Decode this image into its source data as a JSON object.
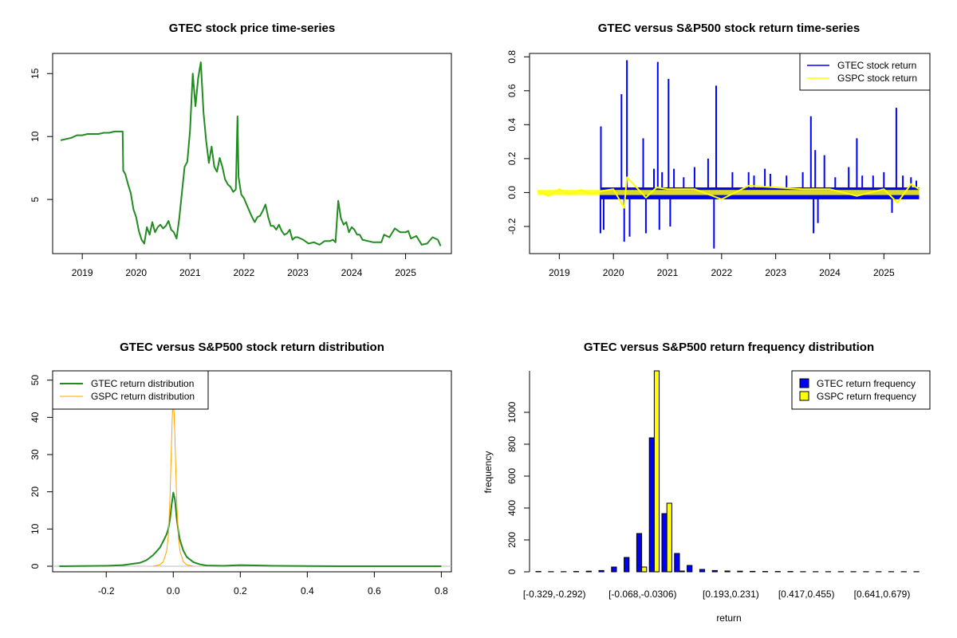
{
  "chart_data": [
    {
      "type": "line",
      "title": "GTEC stock price time-series",
      "xlabel": "",
      "ylabel": "",
      "xlim": [
        2018.45,
        2025.85
      ],
      "ylim": [
        0.7,
        16.6
      ],
      "x_ticks": [
        "2019",
        "2020",
        "2021",
        "2022",
        "2023",
        "2024",
        "2025"
      ],
      "y_ticks": [
        "5",
        "10",
        "15"
      ],
      "color": "#228b22",
      "series": [
        {
          "name": "GTEC price",
          "x": [
            2018.6,
            2018.7,
            2018.8,
            2018.9,
            2019.0,
            2019.1,
            2019.2,
            2019.3,
            2019.4,
            2019.5,
            2019.6,
            2019.7,
            2019.75,
            2019.76,
            2019.8,
            2019.85,
            2019.9,
            2019.95,
            2020.0,
            2020.05,
            2020.1,
            2020.15,
            2020.2,
            2020.25,
            2020.3,
            2020.35,
            2020.4,
            2020.45,
            2020.5,
            2020.55,
            2020.6,
            2020.65,
            2020.7,
            2020.75,
            2020.8,
            2020.85,
            2020.9,
            2020.95,
            2021.0,
            2021.05,
            2021.1,
            2021.15,
            2021.2,
            2021.25,
            2021.3,
            2021.35,
            2021.4,
            2021.45,
            2021.5,
            2021.55,
            2021.6,
            2021.65,
            2021.7,
            2021.75,
            2021.8,
            2021.85,
            2021.88,
            2021.9,
            2021.95,
            2022.0,
            2022.05,
            2022.1,
            2022.15,
            2022.2,
            2022.25,
            2022.3,
            2022.35,
            2022.4,
            2022.45,
            2022.5,
            2022.55,
            2022.6,
            2022.65,
            2022.7,
            2022.75,
            2022.8,
            2022.85,
            2022.9,
            2022.95,
            2023.0,
            2023.1,
            2023.2,
            2023.3,
            2023.4,
            2023.5,
            2023.6,
            2023.65,
            2023.7,
            2023.75,
            2023.8,
            2023.85,
            2023.9,
            2023.95,
            2024.0,
            2024.05,
            2024.1,
            2024.15,
            2024.2,
            2024.3,
            2024.4,
            2024.5,
            2024.55,
            2024.6,
            2024.7,
            2024.8,
            2024.9,
            2025.0,
            2025.05,
            2025.1,
            2025.2,
            2025.3,
            2025.4,
            2025.5,
            2025.6,
            2025.65
          ],
          "y": [
            9.7,
            9.8,
            9.9,
            10.1,
            10.1,
            10.2,
            10.2,
            10.2,
            10.3,
            10.3,
            10.4,
            10.4,
            10.4,
            7.3,
            7.0,
            6.2,
            5.5,
            4.2,
            3.6,
            2.5,
            1.8,
            1.5,
            2.8,
            2.2,
            3.2,
            2.4,
            2.8,
            3.0,
            2.7,
            2.9,
            3.3,
            2.6,
            2.4,
            1.9,
            3.5,
            5.6,
            7.6,
            8.0,
            10.5,
            15.0,
            12.4,
            14.6,
            15.9,
            11.9,
            9.6,
            7.9,
            9.2,
            7.6,
            7.2,
            8.3,
            7.6,
            6.6,
            6.2,
            6.0,
            5.6,
            5.8,
            11.6,
            6.8,
            5.4,
            5.1,
            4.6,
            4.1,
            3.6,
            3.2,
            3.6,
            3.7,
            4.1,
            4.6,
            3.6,
            2.9,
            2.9,
            2.6,
            3.0,
            2.5,
            2.2,
            2.3,
            2.6,
            1.8,
            2.0,
            2.0,
            1.8,
            1.5,
            1.6,
            1.4,
            1.7,
            1.7,
            1.8,
            1.6,
            4.9,
            3.5,
            3.0,
            3.2,
            2.4,
            2.8,
            2.6,
            2.2,
            2.2,
            1.8,
            1.7,
            1.6,
            1.6,
            1.6,
            2.2,
            2.0,
            2.7,
            2.4,
            2.4,
            2.5,
            1.9,
            2.1,
            1.4,
            1.5,
            2.0,
            1.8,
            1.3
          ]
        }
      ]
    },
    {
      "type": "line",
      "title": "GTEC versus S&P500 stock return time-series",
      "xlabel": "",
      "ylabel": "",
      "xlim": [
        2018.45,
        2025.85
      ],
      "ylim": [
        -0.36,
        0.82
      ],
      "x_ticks": [
        "2019",
        "2020",
        "2021",
        "2022",
        "2023",
        "2024",
        "2025"
      ],
      "y_ticks": [
        "-0.2",
        "0.0",
        "0.2",
        "0.4",
        "0.6",
        "0.8"
      ],
      "legend": {
        "position": "top-right",
        "entries": [
          "GTEC stock return",
          "GSPC stock return"
        ]
      },
      "series": [
        {
          "name": "GTEC stock return",
          "color": "#0000ff",
          "x": [
            2019.76,
            2019.77,
            2019.82,
            2020.15,
            2020.2,
            2020.25,
            2020.3,
            2020.55,
            2020.6,
            2020.75,
            2020.82,
            2020.85,
            2020.9,
            2021.02,
            2021.05,
            2021.12,
            2021.3,
            2021.5,
            2021.75,
            2021.86,
            2021.9,
            2022.2,
            2022.5,
            2022.6,
            2022.8,
            2022.9,
            2023.2,
            2023.5,
            2023.65,
            2023.7,
            2023.73,
            2023.78,
            2023.9,
            2024.1,
            2024.35,
            2024.5,
            2024.6,
            2024.8,
            2025.0,
            2025.15,
            2025.23,
            2025.35,
            2025.5,
            2025.6
          ],
          "y": [
            -0.24,
            0.39,
            -0.22,
            0.58,
            -0.29,
            0.78,
            -0.26,
            0.32,
            -0.24,
            0.14,
            0.77,
            -0.22,
            0.12,
            0.67,
            -0.2,
            0.14,
            0.09,
            0.15,
            0.2,
            -0.33,
            0.63,
            0.12,
            0.12,
            0.1,
            0.14,
            0.11,
            0.1,
            0.12,
            0.45,
            -0.24,
            0.25,
            -0.18,
            0.22,
            0.09,
            0.15,
            0.32,
            0.1,
            0.1,
            0.12,
            -0.12,
            0.5,
            0.1,
            0.09,
            0.07
          ]
        },
        {
          "name": "GSPC stock return",
          "color": "#ffff00",
          "x": [
            2018.6,
            2018.8,
            2019.0,
            2019.2,
            2019.4,
            2019.6,
            2019.8,
            2020.0,
            2020.2,
            2020.25,
            2020.4,
            2020.6,
            2020.8,
            2021.0,
            2021.5,
            2022.0,
            2022.5,
            2023.0,
            2023.5,
            2024.0,
            2024.5,
            2025.0,
            2025.25,
            2025.5,
            2025.65
          ],
          "y": [
            0.01,
            -0.02,
            0.02,
            -0.01,
            0.015,
            -0.01,
            0.01,
            0.02,
            -0.09,
            0.09,
            0.04,
            -0.03,
            0.03,
            0.02,
            0.02,
            -0.04,
            0.04,
            0.03,
            0.02,
            0.02,
            -0.02,
            0.02,
            -0.06,
            0.05,
            0.02
          ]
        }
      ]
    },
    {
      "type": "line",
      "title": "GTEC versus S&P500 stock return distribution",
      "xlabel": "",
      "ylabel": "",
      "xlim": [
        -0.36,
        0.83
      ],
      "ylim": [
        -1.5,
        52.5
      ],
      "x_ticks": [
        "-0.2",
        "0.0",
        "0.2",
        "0.4",
        "0.6",
        "0.8"
      ],
      "y_ticks": [
        "0",
        "10",
        "20",
        "30",
        "40",
        "50"
      ],
      "legend": {
        "position": "top-left",
        "entries": [
          "GTEC return distribution",
          "GSPC return distribution"
        ]
      },
      "series": [
        {
          "name": "GTEC return distribution",
          "color": "#228b22",
          "x": [
            -0.34,
            -0.2,
            -0.15,
            -0.1,
            -0.08,
            -0.06,
            -0.04,
            -0.03,
            -0.02,
            -0.015,
            -0.01,
            -0.005,
            0.0,
            0.005,
            0.01,
            0.015,
            0.02,
            0.03,
            0.04,
            0.06,
            0.08,
            0.1,
            0.15,
            0.2,
            0.3,
            0.5,
            0.8
          ],
          "y": [
            0.0,
            0.1,
            0.3,
            0.9,
            1.6,
            3.0,
            5.0,
            6.7,
            8.6,
            10.0,
            12.5,
            16.5,
            19.8,
            17.8,
            13.0,
            9.4,
            7.0,
            4.2,
            2.5,
            1.1,
            0.5,
            0.2,
            0.1,
            0.3,
            0.1,
            0.0,
            0.0
          ]
        },
        {
          "name": "GSPC return distribution",
          "color": "#ffa500",
          "x": [
            -0.06,
            -0.04,
            -0.03,
            -0.02,
            -0.015,
            -0.01,
            -0.005,
            -0.003,
            0.0,
            0.003,
            0.005,
            0.01,
            0.015,
            0.02,
            0.03,
            0.04,
            0.06
          ],
          "y": [
            0.0,
            0.4,
            1.2,
            4.0,
            8.0,
            18.0,
            34.0,
            40.0,
            45.0,
            40.0,
            34.0,
            18.0,
            8.0,
            4.0,
            1.2,
            0.4,
            0.0
          ]
        }
      ]
    },
    {
      "type": "bar",
      "title": "GTEC versus S&P500 return frequency distribution",
      "xlabel": "return",
      "ylabel": "frequency",
      "ylim": [
        0,
        1260
      ],
      "y_ticks": [
        "0",
        "200",
        "400",
        "600",
        "800",
        "1000"
      ],
      "x_tick_labels": [
        "[-0.329,-0.292)",
        "[-0.068,-0.0306)",
        "[0.193,0.231)",
        "[0.417,0.455)",
        "[0.641,0.679)"
      ],
      "x_tick_label_bin_indices": [
        0,
        7,
        14,
        20,
        26
      ],
      "legend": {
        "position": "top-right",
        "entries": [
          "GTEC return frequency",
          "GSPC return frequency"
        ]
      },
      "series": [
        {
          "name": "GTEC return frequency",
          "color": "#0000ff",
          "values": [
            2,
            1,
            1,
            2,
            4,
            8,
            30,
            90,
            240,
            840,
            365,
            115,
            40,
            15,
            8,
            5,
            4,
            3,
            2,
            2,
            2,
            1,
            1,
            1,
            1,
            1,
            1,
            1,
            1,
            1,
            1
          ]
        },
        {
          "name": "GSPC return frequency",
          "color": "#ffff00",
          "values": [
            0,
            0,
            0,
            0,
            0,
            0,
            0,
            0,
            30,
            1260,
            430,
            5,
            0,
            0,
            0,
            0,
            0,
            0,
            0,
            0,
            0,
            0,
            0,
            0,
            0,
            0,
            0,
            0,
            0,
            0,
            0
          ]
        }
      ]
    }
  ]
}
